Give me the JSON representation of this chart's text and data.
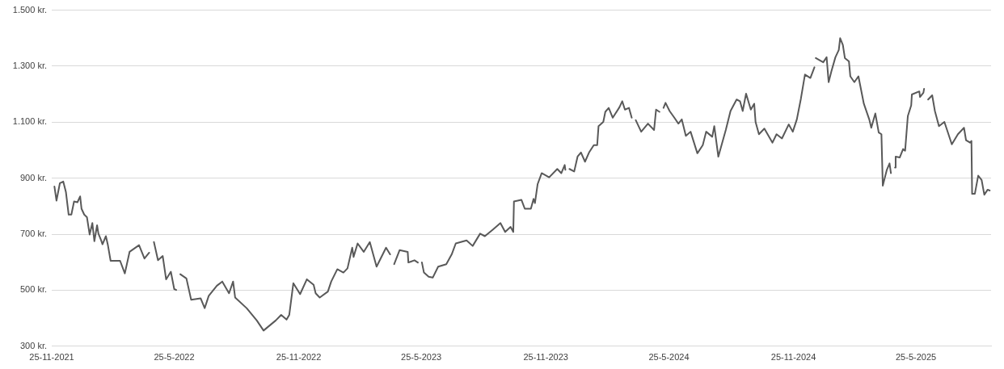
{
  "chart_data": {
    "type": "line",
    "x": [
      "2021-11-29",
      "2021-12-02",
      "2021-12-07",
      "2021-12-12",
      "2021-12-16",
      "2021-12-20",
      "2021-12-24",
      "2021-12-28",
      "2022-01-02",
      "2022-01-06",
      "2022-01-08",
      "2022-01-12",
      "2022-01-16",
      "2022-01-20",
      "2022-01-24",
      "2022-01-27",
      "2022-01-31",
      "2022-02-02",
      "2022-02-06",
      "2022-02-08",
      "2022-02-13",
      "2022-02-16",
      "2022-02-20",
      "2022-03-06",
      "2022-03-13",
      "2022-03-20",
      "2022-04-03",
      "2022-04-11",
      "2022-04-18",
      "2022-04-21",
      "2022-04-25",
      "2022-05-01",
      "2022-05-08",
      "2022-05-13",
      "2022-05-20",
      "2022-05-25",
      "2022-05-28",
      "2022-05-31",
      "2022-06-03",
      "2022-06-12",
      "2022-06-19",
      "2022-07-03",
      "2022-07-09",
      "2022-07-15",
      "2022-07-27",
      "2022-08-04",
      "2022-08-14",
      "2022-08-20",
      "2022-08-23",
      "2022-09-09",
      "2022-09-24",
      "2022-10-04",
      "2022-10-22",
      "2022-10-30",
      "2022-11-07",
      "2022-11-11",
      "2022-11-17",
      "2022-11-27",
      "2022-12-07",
      "2022-12-17",
      "2022-12-20",
      "2022-12-26",
      "2023-01-07",
      "2023-01-12",
      "2023-01-21",
      "2023-01-30",
      "2023-02-05",
      "2023-02-12",
      "2023-02-14",
      "2023-02-20",
      "2023-03-01",
      "2023-03-10",
      "2023-03-20",
      "2023-04-03",
      "2023-04-09",
      "2023-04-12",
      "2023-04-15",
      "2023-04-23",
      "2023-05-05",
      "2023-05-06",
      "2023-05-15",
      "2023-05-20",
      "2023-05-23",
      "2023-05-26",
      "2023-05-29",
      "2023-06-05",
      "2023-06-11",
      "2023-06-19",
      "2023-07-01",
      "2023-07-09",
      "2023-07-15",
      "2023-07-31",
      "2023-08-09",
      "2023-08-20",
      "2023-08-27",
      "2023-09-08",
      "2023-09-19",
      "2023-09-26",
      "2023-10-04",
      "2023-10-08",
      "2023-10-09",
      "2023-10-20",
      "2023-10-25",
      "2023-11-03",
      "2023-11-07",
      "2023-11-09",
      "2023-11-13",
      "2023-11-19",
      "2023-11-30",
      "2023-12-12",
      "2023-12-18",
      "2023-12-23",
      "2023-12-24",
      "2023-12-27",
      "2023-12-30",
      "2024-01-06",
      "2024-01-11",
      "2024-01-16",
      "2024-01-22",
      "2024-01-28",
      "2024-02-04",
      "2024-02-09",
      "2024-02-11",
      "2024-02-18",
      "2024-02-21",
      "2024-02-26",
      "2024-03-03",
      "2024-03-13",
      "2024-03-17",
      "2024-03-21",
      "2024-03-27",
      "2024-03-31",
      "2024-04-03",
      "2024-04-06",
      "2024-04-14",
      "2024-04-24",
      "2024-05-03",
      "2024-05-06",
      "2024-05-11",
      "2024-05-14",
      "2024-05-17",
      "2024-05-20",
      "2024-05-26",
      "2024-06-02",
      "2024-06-08",
      "2024-06-13",
      "2024-06-19",
      "2024-06-26",
      "2024-07-06",
      "2024-07-14",
      "2024-07-19",
      "2024-07-28",
      "2024-07-31",
      "2024-08-06",
      "2024-08-17",
      "2024-08-24",
      "2024-09-02",
      "2024-09-07",
      "2024-09-11",
      "2024-09-16",
      "2024-09-23",
      "2024-09-28",
      "2024-09-30",
      "2024-10-05",
      "2024-10-13",
      "2024-10-25",
      "2024-10-31",
      "2024-11-08",
      "2024-11-18",
      "2024-11-24",
      "2024-11-30",
      "2024-12-06",
      "2024-12-12",
      "2024-12-20",
      "2024-12-26",
      "2024-12-27",
      "2024-12-28",
      "2025-01-08",
      "2025-01-13",
      "2025-01-16",
      "2025-01-20",
      "2025-01-26",
      "2025-01-31",
      "2025-02-02",
      "2025-02-06",
      "2025-02-09",
      "2025-02-15",
      "2025-02-17",
      "2025-02-23",
      "2025-03-01",
      "2025-03-09",
      "2025-03-17",
      "2025-03-20",
      "2025-03-26",
      "2025-03-31",
      "2025-04-04",
      "2025-04-06",
      "2025-04-12",
      "2025-04-16",
      "2025-04-18",
      "2025-04-21",
      "2025-04-24",
      "2025-04-25",
      "2025-05-01",
      "2025-05-06",
      "2025-05-09",
      "2025-05-13",
      "2025-05-18",
      "2025-05-19",
      "2025-05-30",
      "2025-05-31",
      "2025-06-05",
      "2025-06-06",
      "2025-06-07",
      "2025-06-12",
      "2025-06-18",
      "2025-06-22",
      "2025-06-28",
      "2025-07-06",
      "2025-07-10",
      "2025-07-17",
      "2025-07-26",
      "2025-08-04",
      "2025-08-07",
      "2025-08-13",
      "2025-08-15",
      "2025-08-16",
      "2025-08-20",
      "2025-08-25",
      "2025-08-30",
      "2025-09-03",
      "2025-09-08",
      "2025-09-11"
    ],
    "values": [
      870,
      820,
      882,
      888,
      850,
      770,
      770,
      817,
      814,
      835,
      791,
      770,
      761,
      699,
      740,
      675,
      732,
      702,
      678,
      664,
      693,
      661,
      605,
      605,
      560,
      637,
      661,
      613,
      634,
      null,
      672,
      607,
      622,
      539,
      566,
      504,
      501,
      null,
      557,
      542,
      466,
      471,
      436,
      480,
      516,
      531,
      489,
      531,
      474,
      436,
      392,
      356,
      392,
      412,
      395,
      412,
      525,
      486,
      539,
      519,
      489,
      474,
      495,
      531,
      575,
      563,
      578,
      652,
      619,
      667,
      637,
      672,
      584,
      652,
      628,
      null,
      593,
      643,
      637,
      599,
      607,
      599,
      null,
      599,
      563,
      548,
      545,
      584,
      593,
      628,
      667,
      678,
      658,
      702,
      693,
      717,
      740,
      708,
      726,
      708,
      817,
      823,
      791,
      791,
      826,
      811,
      879,
      918,
      903,
      933,
      918,
      947,
      930,
      null,
      933,
      924,
      977,
      992,
      959,
      992,
      1018,
      1018,
      1086,
      1101,
      1137,
      1151,
      1116,
      1154,
      1175,
      1145,
      1151,
      1116,
      null,
      1107,
      1066,
      1095,
      1072,
      1145,
      1137,
      null,
      1151,
      1169,
      1140,
      1116,
      1095,
      1110,
      1051,
      1066,
      989,
      1018,
      1066,
      1048,
      1086,
      977,
      1072,
      1140,
      1181,
      1175,
      1140,
      1202,
      1145,
      1166,
      1101,
      1057,
      1077,
      1027,
      1057,
      1042,
      1092,
      1066,
      1110,
      1184,
      1270,
      1258,
      1296,
      null,
      1329,
      1314,
      1332,
      1243,
      1281,
      1332,
      1358,
      1400,
      1376,
      1329,
      1317,
      1264,
      1243,
      1264,
      1166,
      1110,
      1080,
      1131,
      1063,
      1057,
      873,
      930,
      953,
      918,
      null,
      938,
      977,
      974,
      1004,
      998,
      1122,
      1160,
      1199,
      1210,
      1190,
      1205,
      1219,
      null,
      1181,
      1196,
      1140,
      1086,
      1101,
      1072,
      1021,
      1057,
      1080,
      1036,
      1027,
      1033,
      844,
      844,
      909,
      894,
      841,
      859,
      856
    ],
    "color": "#595959",
    "xlim": [
      "2021-11-25",
      "2025-09-13"
    ],
    "xticks": [
      {
        "value": "2021-11-25",
        "label": "25-11-2021"
      },
      {
        "value": "2022-05-25",
        "label": "25-5-2022"
      },
      {
        "value": "2022-11-25",
        "label": "25-11-2022"
      },
      {
        "value": "2023-05-25",
        "label": "25-5-2023"
      },
      {
        "value": "2023-11-25",
        "label": "25-11-2023"
      },
      {
        "value": "2024-05-25",
        "label": "25-5-2024"
      },
      {
        "value": "2024-11-25",
        "label": "25-11-2024"
      },
      {
        "value": "2025-05-25",
        "label": "25-5-2025"
      }
    ],
    "ylim": [
      300,
      1500
    ],
    "yticks": [
      {
        "value": 300,
        "label": "300 kr."
      },
      {
        "value": 500,
        "label": "500 kr."
      },
      {
        "value": 700,
        "label": "700 kr."
      },
      {
        "value": 900,
        "label": "900 kr."
      },
      {
        "value": 1100,
        "label": "1.100 kr."
      },
      {
        "value": 1300,
        "label": "1.300 kr."
      },
      {
        "value": 1500,
        "label": "1.500 kr."
      }
    ],
    "grid": "y",
    "marker": "none",
    "line_style": "solid",
    "legend": false
  }
}
